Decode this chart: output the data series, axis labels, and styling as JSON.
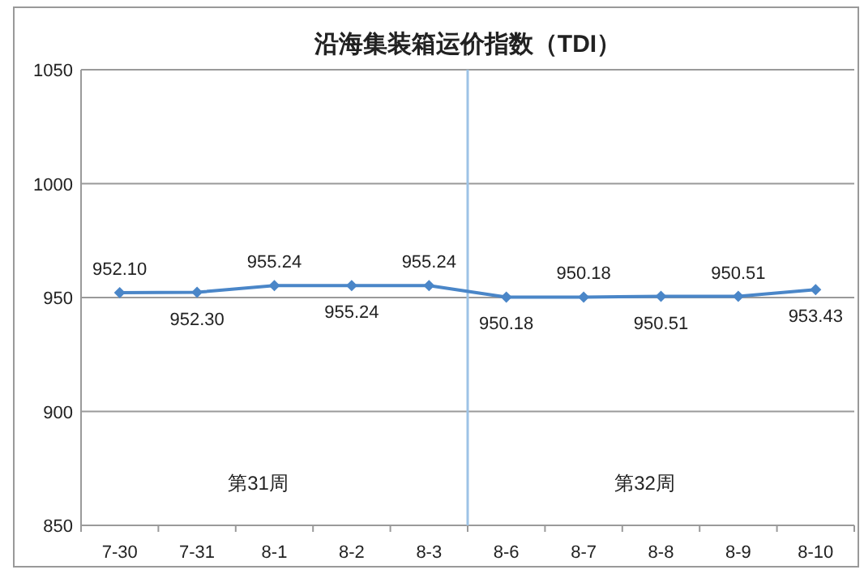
{
  "chart_data": {
    "type": "line",
    "title": "沿海集装箱运价指数（TDI）",
    "categories": [
      "7-30",
      "7-31",
      "8-1",
      "8-2",
      "8-3",
      "8-6",
      "8-7",
      "8-8",
      "8-9",
      "8-10"
    ],
    "series": [
      {
        "color": "#4a86c8",
        "values": [
          952.1,
          952.3,
          955.24,
          955.24,
          955.24,
          950.18,
          950.18,
          950.51,
          950.51,
          953.43
        ],
        "value_labels": [
          "952.10",
          "952.30",
          "955.24",
          "955.24",
          "955.24",
          "950.18",
          "950.18",
          "950.51",
          "950.51",
          "953.43"
        ]
      }
    ],
    "ylim": [
      850,
      1050
    ],
    "yticks": [
      850,
      900,
      950,
      1000,
      1050
    ],
    "grid": "y",
    "marker": "diamond",
    "ref_lines": [
      {
        "axis": "x",
        "value": "8-6",
        "color": "#9dc3e6"
      }
    ],
    "annotations": [
      "第31周",
      "第32周"
    ]
  }
}
